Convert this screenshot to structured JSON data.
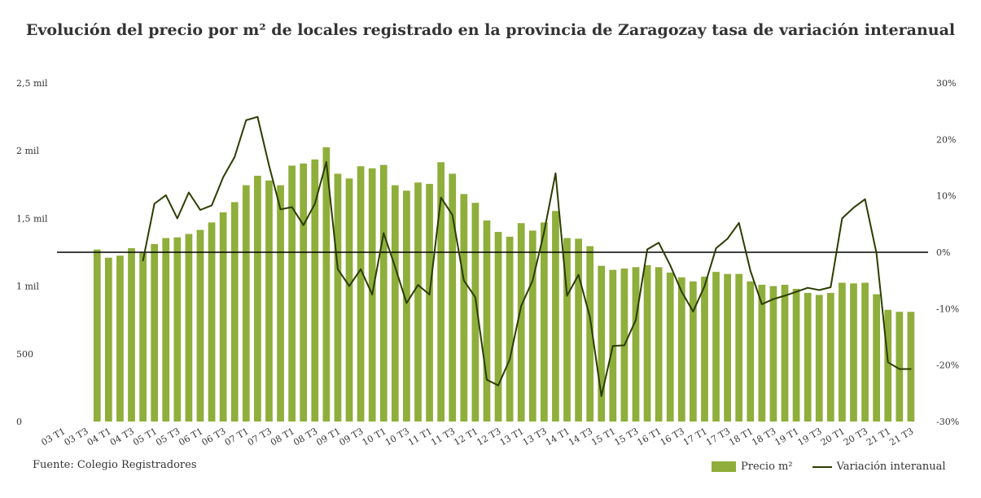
{
  "chart_data": {
    "type": "bar",
    "title": "Evolución del precio por m² de locales registrado en la provincia de Zaragozay tasa de variación interanual",
    "source": "Fuente: Colegio Registradores",
    "x_tick_labels": [
      "03 T1",
      "03 T3",
      "04 T1",
      "04 T3",
      "05 T1",
      "05 T3",
      "06 T1",
      "06 T3",
      "07 T1",
      "07 T3",
      "08 T1",
      "08 T3",
      "09 T1",
      "09 T3",
      "10 T1",
      "10 T3",
      "11 T1",
      "11 T3",
      "12 T1",
      "12 T3",
      "13 T1",
      "13 T3",
      "14 T1",
      "14 T3",
      "15 T1",
      "15 T3",
      "16 T1",
      "16 T3",
      "17 T1",
      "17 T3",
      "18 T1",
      "18 T3",
      "19 T1",
      "19 T3",
      "20 T1",
      "20 T3",
      "21 T1",
      "21 T3"
    ],
    "categories": [
      "03 T1",
      "03 T2",
      "03 T3",
      "03 T4",
      "04 T1",
      "04 T2",
      "04 T3",
      "04 T4",
      "05 T1",
      "05 T2",
      "05 T3",
      "05 T4",
      "06 T1",
      "06 T2",
      "06 T3",
      "06 T4",
      "07 T1",
      "07 T2",
      "07 T3",
      "07 T4",
      "08 T1",
      "08 T2",
      "08 T3",
      "08 T4",
      "09 T1",
      "09 T2",
      "09 T3",
      "09 T4",
      "10 T1",
      "10 T2",
      "10 T3",
      "10 T4",
      "11 T1",
      "11 T2",
      "11 T3",
      "11 T4",
      "12 T1",
      "12 T2",
      "12 T3",
      "12 T4",
      "13 T1",
      "13 T2",
      "13 T3",
      "13 T4",
      "14 T1",
      "14 T2",
      "14 T3",
      "14 T4",
      "15 T1",
      "15 T2",
      "15 T3",
      "15 T4",
      "16 T1",
      "16 T2",
      "16 T3",
      "16 T4",
      "17 T1",
      "17 T2",
      "17 T3",
      "17 T4",
      "18 T1",
      "18 T2",
      "18 T3",
      "18 T4",
      "19 T1",
      "19 T2",
      "19 T3",
      "19 T4",
      "20 T1",
      "20 T2",
      "20 T3",
      "20 T4",
      "21 T1",
      "21 T2",
      "21 T3",
      "21 T4"
    ],
    "series": [
      {
        "name": "Precio m²",
        "type": "bar",
        "axis": "left",
        "color": "#8fae3b",
        "values": [
          null,
          null,
          null,
          1270,
          1210,
          1225,
          1280,
          1245,
          1310,
          1355,
          1360,
          1385,
          1415,
          1470,
          1545,
          1620,
          1745,
          1815,
          1780,
          1745,
          1890,
          1905,
          1935,
          2025,
          1830,
          1795,
          1885,
          1870,
          1895,
          1745,
          1705,
          1765,
          1755,
          1915,
          1830,
          1680,
          1615,
          1485,
          1400,
          1365,
          1465,
          1410,
          1470,
          1555,
          1355,
          1350,
          1295,
          1150,
          1120,
          1130,
          1140,
          1155,
          1140,
          1100,
          1065,
          1035,
          1070,
          1105,
          1090,
          1090,
          1035,
          1010,
          1000,
          1010,
          980,
          950,
          935,
          950,
          1025,
          1020,
          1025,
          940,
          825,
          810,
          810,
          null
        ]
      },
      {
        "name": "Variación interanual",
        "type": "line",
        "axis": "right",
        "color": "#2b3d00",
        "values": [
          null,
          null,
          null,
          null,
          null,
          null,
          null,
          -1.5,
          8.6,
          10.1,
          6,
          10.6,
          7.5,
          8.3,
          13.3,
          16.9,
          23.4,
          24,
          15.4,
          7.6,
          8,
          4.8,
          8.6,
          16,
          -3,
          -6,
          -3,
          -7.5,
          3.4,
          -2.6,
          -9,
          -5.8,
          -7.5,
          9.7,
          6.6,
          -5,
          -8,
          -22.6,
          -23.6,
          -19,
          -9.5,
          -5,
          3.6,
          14,
          -7.7,
          -4,
          -11.5,
          -25.5,
          -16.6,
          -16.5,
          -12,
          0.5,
          1.7,
          -2.3,
          -7,
          -10.5,
          -6,
          0.7,
          2.4,
          5.2,
          -3.3,
          -9.2,
          -8.3,
          -7.7,
          -7,
          -6.3,
          -6.7,
          -6.2,
          6,
          7.9,
          9.4,
          -0.2,
          -19.5,
          -20.7,
          -20.7,
          null
        ]
      }
    ],
    "y_left": {
      "min": 0,
      "max": 2500,
      "ticks": [
        0,
        500,
        1000,
        1500,
        2000,
        2500
      ],
      "tick_labels": [
        "0",
        "500",
        "1 mil",
        "1,5 mil",
        "2 mil",
        "2,5 mil"
      ]
    },
    "y_right": {
      "min": -30,
      "max": 30,
      "ticks": [
        -30,
        -20,
        -10,
        0,
        10,
        20,
        30
      ],
      "tick_labels": [
        "-30%",
        "-20%",
        "-10%",
        "0%",
        "10%",
        "20%",
        "30%"
      ]
    },
    "grid": false,
    "zero_line": true,
    "legend_position": "bottom-right"
  }
}
